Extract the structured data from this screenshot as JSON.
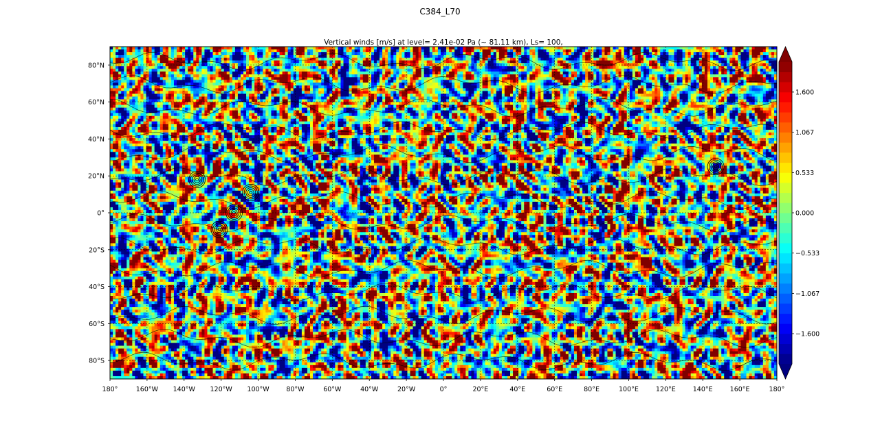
{
  "figure": {
    "suptitle": "C384_L70"
  },
  "chart_data": {
    "type": "heatmap",
    "title": "Vertical winds [m/s] at level= 2.41e-02 Pa (~ 81.11 km),  Ls= 100,",
    "xlim": [
      -180,
      180
    ],
    "ylim": [
      -90,
      90
    ],
    "x_ticks": [
      {
        "value": -180,
        "label": "180°"
      },
      {
        "value": -160,
        "label": "160°W"
      },
      {
        "value": -140,
        "label": "140°W"
      },
      {
        "value": -120,
        "label": "120°W"
      },
      {
        "value": -100,
        "label": "100°W"
      },
      {
        "value": -80,
        "label": "80°W"
      },
      {
        "value": -60,
        "label": "60°W"
      },
      {
        "value": -40,
        "label": "40°W"
      },
      {
        "value": -20,
        "label": "20°W"
      },
      {
        "value": 0,
        "label": "0°"
      },
      {
        "value": 20,
        "label": "20°E"
      },
      {
        "value": 40,
        "label": "40°E"
      },
      {
        "value": 60,
        "label": "60°E"
      },
      {
        "value": 80,
        "label": "80°E"
      },
      {
        "value": 100,
        "label": "100°E"
      },
      {
        "value": 120,
        "label": "120°E"
      },
      {
        "value": 140,
        "label": "140°E"
      },
      {
        "value": 160,
        "label": "160°E"
      },
      {
        "value": 180,
        "label": "180°"
      }
    ],
    "y_ticks": [
      {
        "value": 80,
        "label": "80°N"
      },
      {
        "value": 60,
        "label": "60°N"
      },
      {
        "value": 40,
        "label": "40°N"
      },
      {
        "value": 20,
        "label": "20°N"
      },
      {
        "value": 0,
        "label": "0°"
      },
      {
        "value": -20,
        "label": "20°S"
      },
      {
        "value": -40,
        "label": "40°S"
      },
      {
        "value": -60,
        "label": "60°S"
      },
      {
        "value": -80,
        "label": "80°S"
      }
    ],
    "grid": true,
    "grid_style": "dashed",
    "colormap": "jet",
    "colorbar": {
      "vmin": -2.0,
      "vmax": 2.0,
      "extend": "both",
      "ticks": [
        {
          "value": 1.6,
          "label": "1.600"
        },
        {
          "value": 1.067,
          "label": "1.067"
        },
        {
          "value": 0.533,
          "label": "0.533"
        },
        {
          "value": 0.0,
          "label": "0.000"
        },
        {
          "value": -0.533,
          "label": "−0.533"
        },
        {
          "value": -1.067,
          "label": "−1.067"
        },
        {
          "value": -1.6,
          "label": "−1.600"
        }
      ]
    },
    "overlay": "topography contour lines (black)",
    "volcano_markers": [
      {
        "lon": -133,
        "lat": 18
      },
      {
        "lon": -121,
        "lat": -9
      },
      {
        "lon": -104,
        "lat": 11
      },
      {
        "lon": -113,
        "lat": 0
      },
      {
        "lon": 147,
        "lat": 25
      }
    ]
  }
}
